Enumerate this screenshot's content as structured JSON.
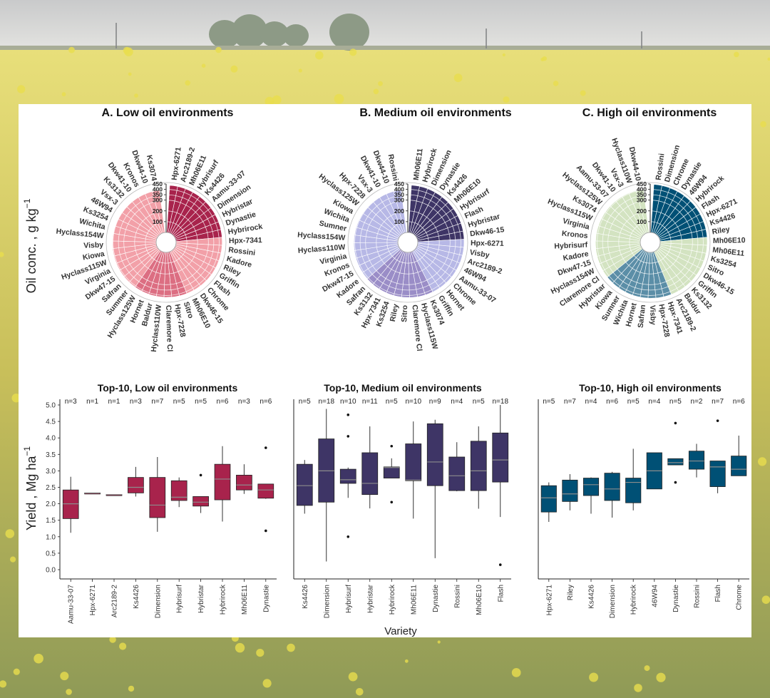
{
  "colors": {
    "low": "#a8234c",
    "low_light": "#f2a0a8",
    "medium": "#3e3566",
    "medium_light": "#b7b8e6",
    "high": "#005075",
    "high_light": "#d3e3c1"
  },
  "y_axis_label_top": "Oil conc. , g kg",
  "y_axis_label_top_sup": "−1",
  "y_axis_label_bottom": "Yield , Mg ha",
  "y_axis_label_bottom_sup": "−1",
  "x_axis_label": "Variety",
  "chart_data": [
    {
      "type": "radial-bar",
      "title": "A. Low oil environments",
      "group": "low",
      "radial_ticks": [
        "450",
        "400",
        "350",
        "300",
        "200",
        "100"
      ],
      "radial_tick_values": [
        450,
        400,
        350,
        300,
        200,
        100
      ],
      "varieties": [
        "Hpx-6271",
        "Arc2189-2",
        "Mh06E11",
        "Hybrisurf",
        "Ks4426",
        "Aamu-33-07",
        "Dimension",
        "Hybristar",
        "Dynastie",
        "Hybrirock",
        "Hpx-7341",
        "Rossini",
        "Kadore",
        "Riley",
        "Griffin",
        "Flash",
        "Chrome",
        "Dkw46-15",
        "Mh06E10",
        "Sitro",
        "Hpx-7228",
        "Claremore Cl",
        "Hyclass110W",
        "Baldur",
        "Hornet",
        "Hyclass125W",
        "Summer",
        "Safran",
        "Dkw47-15",
        "Virginia",
        "Hyclass115W",
        "Kiowa",
        "Visby",
        "Hyclass154W",
        "Wichita",
        "Ks3254",
        "46W94",
        "Vsx-3",
        "Ks3132",
        "Dkw41-10",
        "Kronos",
        "Dkw44-10",
        "Ks3074"
      ],
      "values": [
        438,
        437,
        436,
        435,
        434,
        433,
        432,
        431,
        430,
        429,
        428,
        427,
        426,
        425,
        424,
        423,
        422,
        421,
        420,
        419,
        418,
        417,
        416,
        415,
        414,
        413,
        412,
        411,
        410,
        409,
        408,
        407,
        406,
        405,
        404,
        403,
        402,
        401,
        400,
        399,
        398,
        397,
        396
      ],
      "highlight_count": 10
    },
    {
      "type": "radial-bar",
      "title": "B. Medium oil environments",
      "group": "medium",
      "radial_ticks": [
        "450",
        "400",
        "350",
        "300",
        "200",
        "100"
      ],
      "radial_tick_values": [
        450,
        400,
        350,
        300,
        200,
        100
      ],
      "varieties": [
        "Mh06E11",
        "Hybrirock",
        "Dimension",
        "Dynastie",
        "Ks4426",
        "Mh06E10",
        "Hybrisurf",
        "Flash",
        "Hybristar",
        "Dkw46-15",
        "Hpx-6271",
        "Visby",
        "Arc2189-2",
        "46W94",
        "Aamu-33-07",
        "Chrome",
        "Hornet",
        "Griffin",
        "Ks3074",
        "Hyclass115W",
        "Claremore Cl",
        "Sitro",
        "Riley",
        "Ks3254",
        "Hpx-7341",
        "Ks3132",
        "Safran",
        "Kadore",
        "Dkw47-15",
        "Kronos",
        "Virginia",
        "Hyclass110W",
        "Hyclass154W",
        "Sumner",
        "Wichita",
        "Kiowa",
        "Hyclass125W",
        "Hpx-7228",
        "Vsx-3",
        "Dkw41-10",
        "Dkw44-10",
        "Rossini"
      ],
      "values": [
        440,
        439,
        438,
        437,
        436,
        435,
        434,
        433,
        432,
        431,
        430,
        429,
        428,
        427,
        426,
        425,
        424,
        423,
        422,
        421,
        420,
        419,
        418,
        417,
        416,
        415,
        414,
        413,
        412,
        411,
        410,
        409,
        408,
        407,
        406,
        405,
        404,
        403,
        402,
        401,
        400,
        399
      ],
      "highlight_count": 10
    },
    {
      "type": "radial-bar",
      "title": "C. High oil environments",
      "group": "high",
      "radial_ticks": [
        "450",
        "400",
        "350",
        "300",
        "200",
        "100"
      ],
      "radial_tick_values": [
        450,
        400,
        350,
        300,
        200,
        100
      ],
      "varieties": [
        "Rossini",
        "Dimension",
        "Chrome",
        "Dynastie",
        "46W94",
        "Hybrirock",
        "Flash",
        "Hpx-6271",
        "Ks4426",
        "Riley",
        "Mh06E10",
        "Mh06E11",
        "Ks3254",
        "Sitro",
        "Dkw46-15",
        "Griffin",
        "Ks3132",
        "Baldur",
        "Arc2189-2",
        "Hpx-7341",
        "Hpx-7228",
        "Visby",
        "Safran",
        "Hornet",
        "Wichita",
        "Sumner",
        "Kiowa",
        "Hybristar",
        "Claremore Cl",
        "Hyclass154W",
        "Dkw47-15",
        "Kadore",
        "Hybrisurf",
        "Kronos",
        "Virginia",
        "Hyclass115W",
        "Ks3074",
        "Hyclass125W",
        "Aamu-33-07",
        "Dkw41-10",
        "Vsx-3",
        "Hyclass110W",
        "Dkw44-10"
      ],
      "values": [
        447,
        446,
        445,
        444,
        443,
        442,
        441,
        440,
        439,
        438,
        437,
        436,
        435,
        434,
        433,
        432,
        431,
        430,
        429,
        428,
        427,
        426,
        425,
        424,
        423,
        422,
        421,
        420,
        419,
        418,
        417,
        416,
        415,
        414,
        413,
        412,
        411,
        410,
        409,
        408,
        407,
        406,
        405
      ],
      "highlight_count": 10
    },
    {
      "type": "boxplot",
      "title": "Top-10, Low oil environments",
      "group": "low",
      "ylim": [
        0,
        5
      ],
      "yticks": [
        "0.0",
        "0.5",
        "1.0",
        "1.5",
        "2.0",
        "2.5",
        "3.0",
        "3.5",
        "4.0",
        "4.5",
        "5.0"
      ],
      "ytick_values": [
        0,
        0.5,
        1,
        1.5,
        2,
        2.5,
        3,
        3.5,
        4,
        4.5,
        5
      ],
      "categories": [
        "Aamu-33-07",
        "Hpx-6271",
        "Arc2189-2",
        "Ks4426",
        "Dimension",
        "Hybrisurf",
        "Hybristar",
        "Hybrirock",
        "Mh06E11",
        "Dynastie"
      ],
      "n_labels": [
        "n=3",
        "n=1",
        "n=1",
        "n=3",
        "n=7",
        "n=5",
        "n=5",
        "n=6",
        "n=3",
        "n=6"
      ],
      "boxes": [
        {
          "min": 1.12,
          "q1": 1.55,
          "median": 2.0,
          "q3": 2.42,
          "max": 2.82,
          "outliers": []
        },
        {
          "min": 2.33,
          "q1": 2.33,
          "median": 2.33,
          "q3": 2.33,
          "max": 2.33,
          "outliers": []
        },
        {
          "min": 2.28,
          "q1": 2.28,
          "median": 2.28,
          "q3": 2.28,
          "max": 2.28,
          "outliers": []
        },
        {
          "min": 2.22,
          "q1": 2.33,
          "median": 2.5,
          "q3": 2.8,
          "max": 3.12,
          "outliers": []
        },
        {
          "min": 1.15,
          "q1": 1.58,
          "median": 1.96,
          "q3": 2.8,
          "max": 3.42,
          "outliers": []
        },
        {
          "min": 1.9,
          "q1": 2.1,
          "median": 2.2,
          "q3": 2.7,
          "max": 2.8,
          "outliers": []
        },
        {
          "min": 1.72,
          "q1": 1.93,
          "median": 2.05,
          "q3": 2.22,
          "max": 2.22,
          "outliers": [
            2.87
          ]
        },
        {
          "min": 1.46,
          "q1": 2.12,
          "median": 2.75,
          "q3": 3.2,
          "max": 3.75,
          "outliers": []
        },
        {
          "min": 2.3,
          "q1": 2.42,
          "median": 2.57,
          "q3": 2.87,
          "max": 3.2,
          "outliers": []
        },
        {
          "min": 2.15,
          "q1": 2.17,
          "median": 2.42,
          "q3": 2.6,
          "max": 2.6,
          "outliers": [
            3.7,
            1.18
          ]
        }
      ]
    },
    {
      "type": "boxplot",
      "title": "Top-10, Medium oil environments",
      "group": "medium",
      "ylim": [
        0,
        5
      ],
      "categories": [
        "Ks4426",
        "Dimension",
        "Hybrisurf",
        "Hybristar",
        "Hybrirock",
        "Mh06E11",
        "Dynastie",
        "Rossini",
        "Mh06E10",
        "Flash"
      ],
      "n_labels": [
        "n=5",
        "n=18",
        "n=10",
        "n=11",
        "n=5",
        "n=10",
        "n=9",
        "n=4",
        "n=5",
        "n=18"
      ],
      "boxes": [
        {
          "min": 1.7,
          "q1": 1.95,
          "median": 2.55,
          "q3": 3.2,
          "max": 3.33,
          "outliers": []
        },
        {
          "min": 0.25,
          "q1": 2.05,
          "median": 3.0,
          "q3": 3.97,
          "max": 4.88,
          "outliers": []
        },
        {
          "min": 2.18,
          "q1": 2.62,
          "median": 2.73,
          "q3": 3.05,
          "max": 3.1,
          "outliers": [
            4.7,
            4.05,
            1.0
          ]
        },
        {
          "min": 1.86,
          "q1": 2.28,
          "median": 2.62,
          "q3": 3.55,
          "max": 4.35,
          "outliers": []
        },
        {
          "min": 2.78,
          "q1": 2.78,
          "median": 3.1,
          "q3": 3.12,
          "max": 3.38,
          "outliers": [
            3.75,
            2.05
          ]
        },
        {
          "min": 1.55,
          "q1": 2.7,
          "median": 2.72,
          "q3": 3.82,
          "max": 4.5,
          "outliers": []
        },
        {
          "min": 0.35,
          "q1": 2.55,
          "median": 3.27,
          "q3": 4.43,
          "max": 4.55,
          "outliers": []
        },
        {
          "min": 2.38,
          "q1": 2.4,
          "median": 2.85,
          "q3": 3.42,
          "max": 3.87,
          "outliers": []
        },
        {
          "min": 1.85,
          "q1": 2.4,
          "median": 3.0,
          "q3": 3.9,
          "max": 4.35,
          "outliers": []
        },
        {
          "min": 1.6,
          "q1": 2.66,
          "median": 3.33,
          "q3": 4.15,
          "max": 5.0,
          "outliers": [
            0.15
          ]
        }
      ]
    },
    {
      "type": "boxplot",
      "title": "Top-10, High oil environments",
      "group": "high",
      "ylim": [
        0,
        5
      ],
      "categories": [
        "Hpx-6271",
        "Riley",
        "Ks4426",
        "Dimension",
        "Hybrirock",
        "46W94",
        "Dynastie",
        "Rossini",
        "Flash",
        "Chrome"
      ],
      "n_labels": [
        "n=5",
        "n=7",
        "n=4",
        "n=6",
        "n=5",
        "n=4",
        "n=5",
        "n=2",
        "n=7",
        "n=6"
      ],
      "boxes": [
        {
          "min": 1.45,
          "q1": 1.75,
          "median": 2.18,
          "q3": 2.55,
          "max": 2.65,
          "outliers": []
        },
        {
          "min": 1.8,
          "q1": 2.07,
          "median": 2.3,
          "q3": 2.72,
          "max": 2.9,
          "outliers": []
        },
        {
          "min": 1.7,
          "q1": 2.25,
          "median": 2.58,
          "q3": 2.78,
          "max": 2.8,
          "outliers": []
        },
        {
          "min": 1.58,
          "q1": 2.1,
          "median": 2.45,
          "q3": 2.93,
          "max": 2.97,
          "outliers": []
        },
        {
          "min": 1.8,
          "q1": 2.03,
          "median": 2.65,
          "q3": 2.78,
          "max": 3.67,
          "outliers": []
        },
        {
          "min": 2.45,
          "q1": 2.45,
          "median": 3.0,
          "q3": 3.55,
          "max": 3.55,
          "outliers": []
        },
        {
          "min": 3.18,
          "q1": 3.18,
          "median": 3.25,
          "q3": 3.37,
          "max": 3.37,
          "outliers": [
            4.45,
            2.65
          ]
        },
        {
          "min": 2.8,
          "q1": 3.05,
          "median": 3.3,
          "q3": 3.6,
          "max": 3.82,
          "outliers": []
        },
        {
          "min": 2.32,
          "q1": 2.52,
          "median": 3.12,
          "q3": 3.3,
          "max": 3.3,
          "outliers": [
            4.52
          ]
        },
        {
          "min": 2.85,
          "q1": 2.85,
          "median": 3.05,
          "q3": 3.45,
          "max": 4.07,
          "outliers": []
        }
      ]
    }
  ]
}
